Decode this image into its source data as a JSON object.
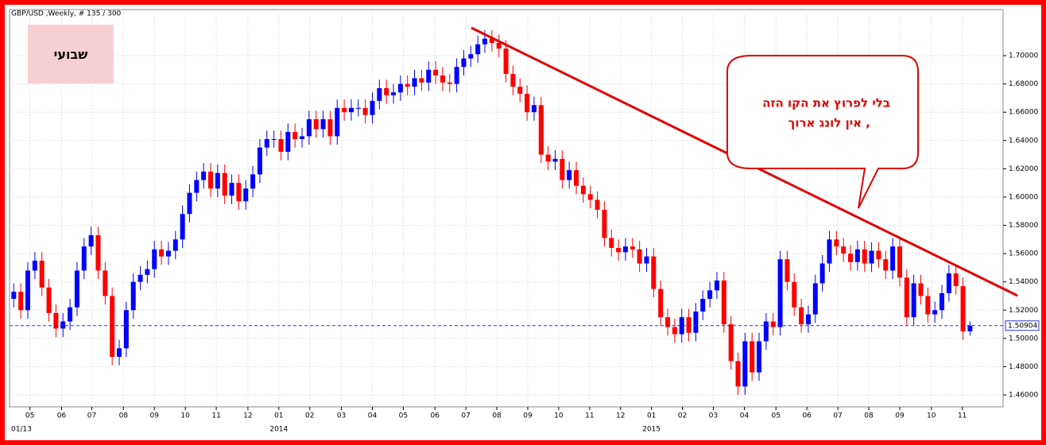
{
  "chart_data": {
    "type": "candlestick",
    "title": "GBP/USD ,Weekly, # 135 / 300",
    "period_label": "שבועי",
    "callout": [
      "בלי לפרוץ את הקו  הזה",
      ", אין  לונג ארוך"
    ],
    "start_label": "01/13",
    "year_labels": [
      {
        "value": 37.7,
        "label": "2014"
      },
      {
        "value": 90.7,
        "label": "2015"
      }
    ],
    "up_color": "#0000ff",
    "down_color": "#ff0000",
    "grid": true,
    "last_price": {
      "value": 1.50904,
      "label": "1.50904"
    },
    "ylim": [
      1.4516,
      1.7326
    ],
    "xlim": [
      -0.6,
      140.7
    ],
    "yticks": [
      {
        "value": 1.46,
        "label": "1.46000"
      },
      {
        "value": 1.48,
        "label": "1.48000"
      },
      {
        "value": 1.5,
        "label": "1.50000"
      },
      {
        "value": 1.52,
        "label": "1.52000"
      },
      {
        "value": 1.54,
        "label": "1.54000"
      },
      {
        "value": 1.56,
        "label": "1.56000"
      },
      {
        "value": 1.58,
        "label": "1.58000"
      },
      {
        "value": 1.6,
        "label": "1.60000"
      },
      {
        "value": 1.62,
        "label": "1.62000"
      },
      {
        "value": 1.64,
        "label": "1.64000"
      },
      {
        "value": 1.66,
        "label": "1.66000"
      },
      {
        "value": 1.68,
        "label": "1.68000"
      },
      {
        "value": 1.7,
        "label": "1.70000"
      }
    ],
    "xticks": [
      {
        "value": 2.3,
        "label": "05"
      },
      {
        "value": 6.8,
        "label": "06"
      },
      {
        "value": 11.1,
        "label": "07"
      },
      {
        "value": 15.6,
        "label": "08"
      },
      {
        "value": 20,
        "label": "09"
      },
      {
        "value": 24.4,
        "label": "10"
      },
      {
        "value": 28.8,
        "label": "11"
      },
      {
        "value": 33.3,
        "label": "12"
      },
      {
        "value": 37.7,
        "label": "01"
      },
      {
        "value": 42.1,
        "label": "02"
      },
      {
        "value": 46.6,
        "label": "03"
      },
      {
        "value": 51,
        "label": "04"
      },
      {
        "value": 55.4,
        "label": "05"
      },
      {
        "value": 59.9,
        "label": "06"
      },
      {
        "value": 64.3,
        "label": "07"
      },
      {
        "value": 68.7,
        "label": "08"
      },
      {
        "value": 73.1,
        "label": "09"
      },
      {
        "value": 77.5,
        "label": "10"
      },
      {
        "value": 81.9,
        "label": "11"
      },
      {
        "value": 86.3,
        "label": "12"
      },
      {
        "value": 90.7,
        "label": "01"
      },
      {
        "value": 95.1,
        "label": "02"
      },
      {
        "value": 99.5,
        "label": "03"
      },
      {
        "value": 103.9,
        "label": "04"
      },
      {
        "value": 108.4,
        "label": "05"
      },
      {
        "value": 112.8,
        "label": "06"
      },
      {
        "value": 117.2,
        "label": "07"
      },
      {
        "value": 121.6,
        "label": "08"
      },
      {
        "value": 126,
        "label": "09"
      },
      {
        "value": 130.5,
        "label": "10"
      },
      {
        "value": 134.9,
        "label": "11"
      }
    ],
    "candles": [
      [
        1.528,
        1.539,
        1.522,
        1.533
      ],
      [
        1.533,
        1.539,
        1.514,
        1.52
      ],
      [
        1.52,
        1.554,
        1.514,
        1.548
      ],
      [
        1.548,
        1.561,
        1.542,
        1.555
      ],
      [
        1.555,
        1.561,
        1.53,
        1.536
      ],
      [
        1.536,
        1.542,
        1.512,
        1.518
      ],
      [
        1.518,
        1.524,
        1.501,
        1.507
      ],
      [
        1.507,
        1.518,
        1.501,
        1.512
      ],
      [
        1.512,
        1.528,
        1.506,
        1.522
      ],
      [
        1.522,
        1.554,
        1.516,
        1.548
      ],
      [
        1.548,
        1.571,
        1.542,
        1.565
      ],
      [
        1.565,
        1.579,
        1.559,
        1.573
      ],
      [
        1.573,
        1.579,
        1.542,
        1.548
      ],
      [
        1.548,
        1.554,
        1.524,
        1.53
      ],
      [
        1.53,
        1.536,
        1.481,
        1.487
      ],
      [
        1.487,
        1.499,
        1.481,
        1.493
      ],
      [
        1.493,
        1.526,
        1.487,
        1.52
      ],
      [
        1.52,
        1.546,
        1.514,
        1.54
      ],
      [
        1.54,
        1.551,
        1.534,
        1.545
      ],
      [
        1.545,
        1.555,
        1.539,
        1.549
      ],
      [
        1.549,
        1.569,
        1.543,
        1.563
      ],
      [
        1.563,
        1.569,
        1.552,
        1.558
      ],
      [
        1.558,
        1.568,
        1.552,
        1.562
      ],
      [
        1.562,
        1.576,
        1.556,
        1.57
      ],
      [
        1.57,
        1.594,
        1.564,
        1.588
      ],
      [
        1.588,
        1.609,
        1.582,
        1.603
      ],
      [
        1.603,
        1.618,
        1.597,
        1.612
      ],
      [
        1.612,
        1.624,
        1.606,
        1.618
      ],
      [
        1.618,
        1.624,
        1.6,
        1.606
      ],
      [
        1.606,
        1.623,
        1.6,
        1.617
      ],
      [
        1.617,
        1.623,
        1.595,
        1.601
      ],
      [
        1.601,
        1.616,
        1.595,
        1.61
      ],
      [
        1.61,
        1.616,
        1.591,
        1.597
      ],
      [
        1.597,
        1.612,
        1.591,
        1.606
      ],
      [
        1.606,
        1.622,
        1.6,
        1.616
      ],
      [
        1.616,
        1.641,
        1.61,
        1.635
      ],
      [
        1.635,
        1.647,
        1.629,
        1.641
      ],
      [
        1.641,
        1.647,
        1.635,
        1.641
      ],
      [
        1.641,
        1.647,
        1.626,
        1.632
      ],
      [
        1.632,
        1.652,
        1.626,
        1.646
      ],
      [
        1.646,
        1.652,
        1.635,
        1.641
      ],
      [
        1.641,
        1.649,
        1.635,
        1.643
      ],
      [
        1.643,
        1.661,
        1.637,
        1.655
      ],
      [
        1.655,
        1.661,
        1.642,
        1.648
      ],
      [
        1.648,
        1.661,
        1.642,
        1.655
      ],
      [
        1.655,
        1.661,
        1.637,
        1.643
      ],
      [
        1.643,
        1.669,
        1.637,
        1.663
      ],
      [
        1.663,
        1.669,
        1.654,
        1.66
      ],
      [
        1.66,
        1.669,
        1.654,
        1.663
      ],
      [
        1.663,
        1.669,
        1.657,
        1.663
      ],
      [
        1.663,
        1.669,
        1.652,
        1.658
      ],
      [
        1.658,
        1.674,
        1.652,
        1.668
      ],
      [
        1.668,
        1.683,
        1.662,
        1.677
      ],
      [
        1.677,
        1.683,
        1.666,
        1.672
      ],
      [
        1.672,
        1.68,
        1.666,
        1.674
      ],
      [
        1.674,
        1.686,
        1.668,
        1.68
      ],
      [
        1.68,
        1.686,
        1.672,
        1.678
      ],
      [
        1.678,
        1.69,
        1.672,
        1.684
      ],
      [
        1.684,
        1.69,
        1.675,
        1.681
      ],
      [
        1.681,
        1.696,
        1.675,
        1.69
      ],
      [
        1.69,
        1.696,
        1.68,
        1.686
      ],
      [
        1.686,
        1.692,
        1.675,
        1.681
      ],
      [
        1.681,
        1.687,
        1.674,
        1.68
      ],
      [
        1.68,
        1.698,
        1.674,
        1.692
      ],
      [
        1.692,
        1.704,
        1.686,
        1.698
      ],
      [
        1.698,
        1.707,
        1.692,
        1.701
      ],
      [
        1.701,
        1.714,
        1.695,
        1.708
      ],
      [
        1.708,
        1.718,
        1.702,
        1.712
      ],
      [
        1.712,
        1.718,
        1.703,
        1.709
      ],
      [
        1.709,
        1.715,
        1.699,
        1.705
      ],
      [
        1.705,
        1.711,
        1.681,
        1.687
      ],
      [
        1.687,
        1.693,
        1.672,
        1.678
      ],
      [
        1.678,
        1.684,
        1.667,
        1.673
      ],
      [
        1.673,
        1.679,
        1.654,
        1.66
      ],
      [
        1.66,
        1.671,
        1.654,
        1.665
      ],
      [
        1.665,
        1.671,
        1.624,
        1.63
      ],
      [
        1.63,
        1.636,
        1.619,
        1.625
      ],
      [
        1.625,
        1.633,
        1.619,
        1.627
      ],
      [
        1.627,
        1.633,
        1.606,
        1.612
      ],
      [
        1.612,
        1.625,
        1.606,
        1.619
      ],
      [
        1.619,
        1.625,
        1.602,
        1.608
      ],
      [
        1.608,
        1.614,
        1.596,
        1.602
      ],
      [
        1.602,
        1.608,
        1.592,
        1.598
      ],
      [
        1.598,
        1.604,
        1.585,
        1.591
      ],
      [
        1.591,
        1.597,
        1.565,
        1.571
      ],
      [
        1.571,
        1.577,
        1.558,
        1.564
      ],
      [
        1.564,
        1.57,
        1.555,
        1.561
      ],
      [
        1.561,
        1.571,
        1.555,
        1.565
      ],
      [
        1.565,
        1.571,
        1.557,
        1.563
      ],
      [
        1.563,
        1.569,
        1.547,
        1.553
      ],
      [
        1.553,
        1.564,
        1.547,
        1.558
      ],
      [
        1.558,
        1.564,
        1.529,
        1.535
      ],
      [
        1.535,
        1.541,
        1.509,
        1.515
      ],
      [
        1.515,
        1.521,
        1.502,
        1.508
      ],
      [
        1.508,
        1.514,
        1.497,
        1.503
      ],
      [
        1.503,
        1.521,
        1.497,
        1.515
      ],
      [
        1.515,
        1.521,
        1.498,
        1.504
      ],
      [
        1.504,
        1.525,
        1.498,
        1.519
      ],
      [
        1.519,
        1.534,
        1.513,
        1.528
      ],
      [
        1.528,
        1.54,
        1.522,
        1.534
      ],
      [
        1.534,
        1.547,
        1.528,
        1.541
      ],
      [
        1.541,
        1.547,
        1.504,
        1.51
      ],
      [
        1.51,
        1.516,
        1.478,
        1.484
      ],
      [
        1.484,
        1.49,
        1.46,
        1.466
      ],
      [
        1.466,
        1.504,
        1.46,
        1.498
      ],
      [
        1.498,
        1.504,
        1.47,
        1.476
      ],
      [
        1.476,
        1.504,
        1.47,
        1.498
      ],
      [
        1.498,
        1.518,
        1.492,
        1.512
      ],
      [
        1.512,
        1.518,
        1.502,
        1.508
      ],
      [
        1.508,
        1.562,
        1.502,
        1.556
      ],
      [
        1.556,
        1.562,
        1.534,
        1.54
      ],
      [
        1.54,
        1.546,
        1.516,
        1.522
      ],
      [
        1.522,
        1.528,
        1.504,
        1.51
      ],
      [
        1.51,
        1.523,
        1.504,
        1.517
      ],
      [
        1.517,
        1.545,
        1.511,
        1.539
      ],
      [
        1.539,
        1.559,
        1.533,
        1.553
      ],
      [
        1.553,
        1.576,
        1.547,
        1.57
      ],
      [
        1.57,
        1.576,
        1.559,
        1.565
      ],
      [
        1.565,
        1.571,
        1.554,
        1.56
      ],
      [
        1.56,
        1.566,
        1.548,
        1.554
      ],
      [
        1.554,
        1.569,
        1.548,
        1.563
      ],
      [
        1.563,
        1.569,
        1.547,
        1.553
      ],
      [
        1.553,
        1.568,
        1.547,
        1.562
      ],
      [
        1.562,
        1.568,
        1.55,
        1.556
      ],
      [
        1.556,
        1.562,
        1.542,
        1.548
      ],
      [
        1.548,
        1.571,
        1.542,
        1.565
      ],
      [
        1.565,
        1.571,
        1.537,
        1.543
      ],
      [
        1.543,
        1.549,
        1.509,
        1.515
      ],
      [
        1.515,
        1.545,
        1.509,
        1.539
      ],
      [
        1.539,
        1.545,
        1.524,
        1.53
      ],
      [
        1.53,
        1.536,
        1.511,
        1.517
      ],
      [
        1.517,
        1.526,
        1.511,
        1.52
      ],
      [
        1.52,
        1.538,
        1.514,
        1.532
      ],
      [
        1.532,
        1.552,
        1.526,
        1.546
      ],
      [
        1.546,
        1.552,
        1.531,
        1.537
      ],
      [
        1.537,
        1.543,
        1.499,
        1.505
      ],
      [
        1.505,
        1.512,
        1.502,
        1.509
      ]
    ]
  }
}
